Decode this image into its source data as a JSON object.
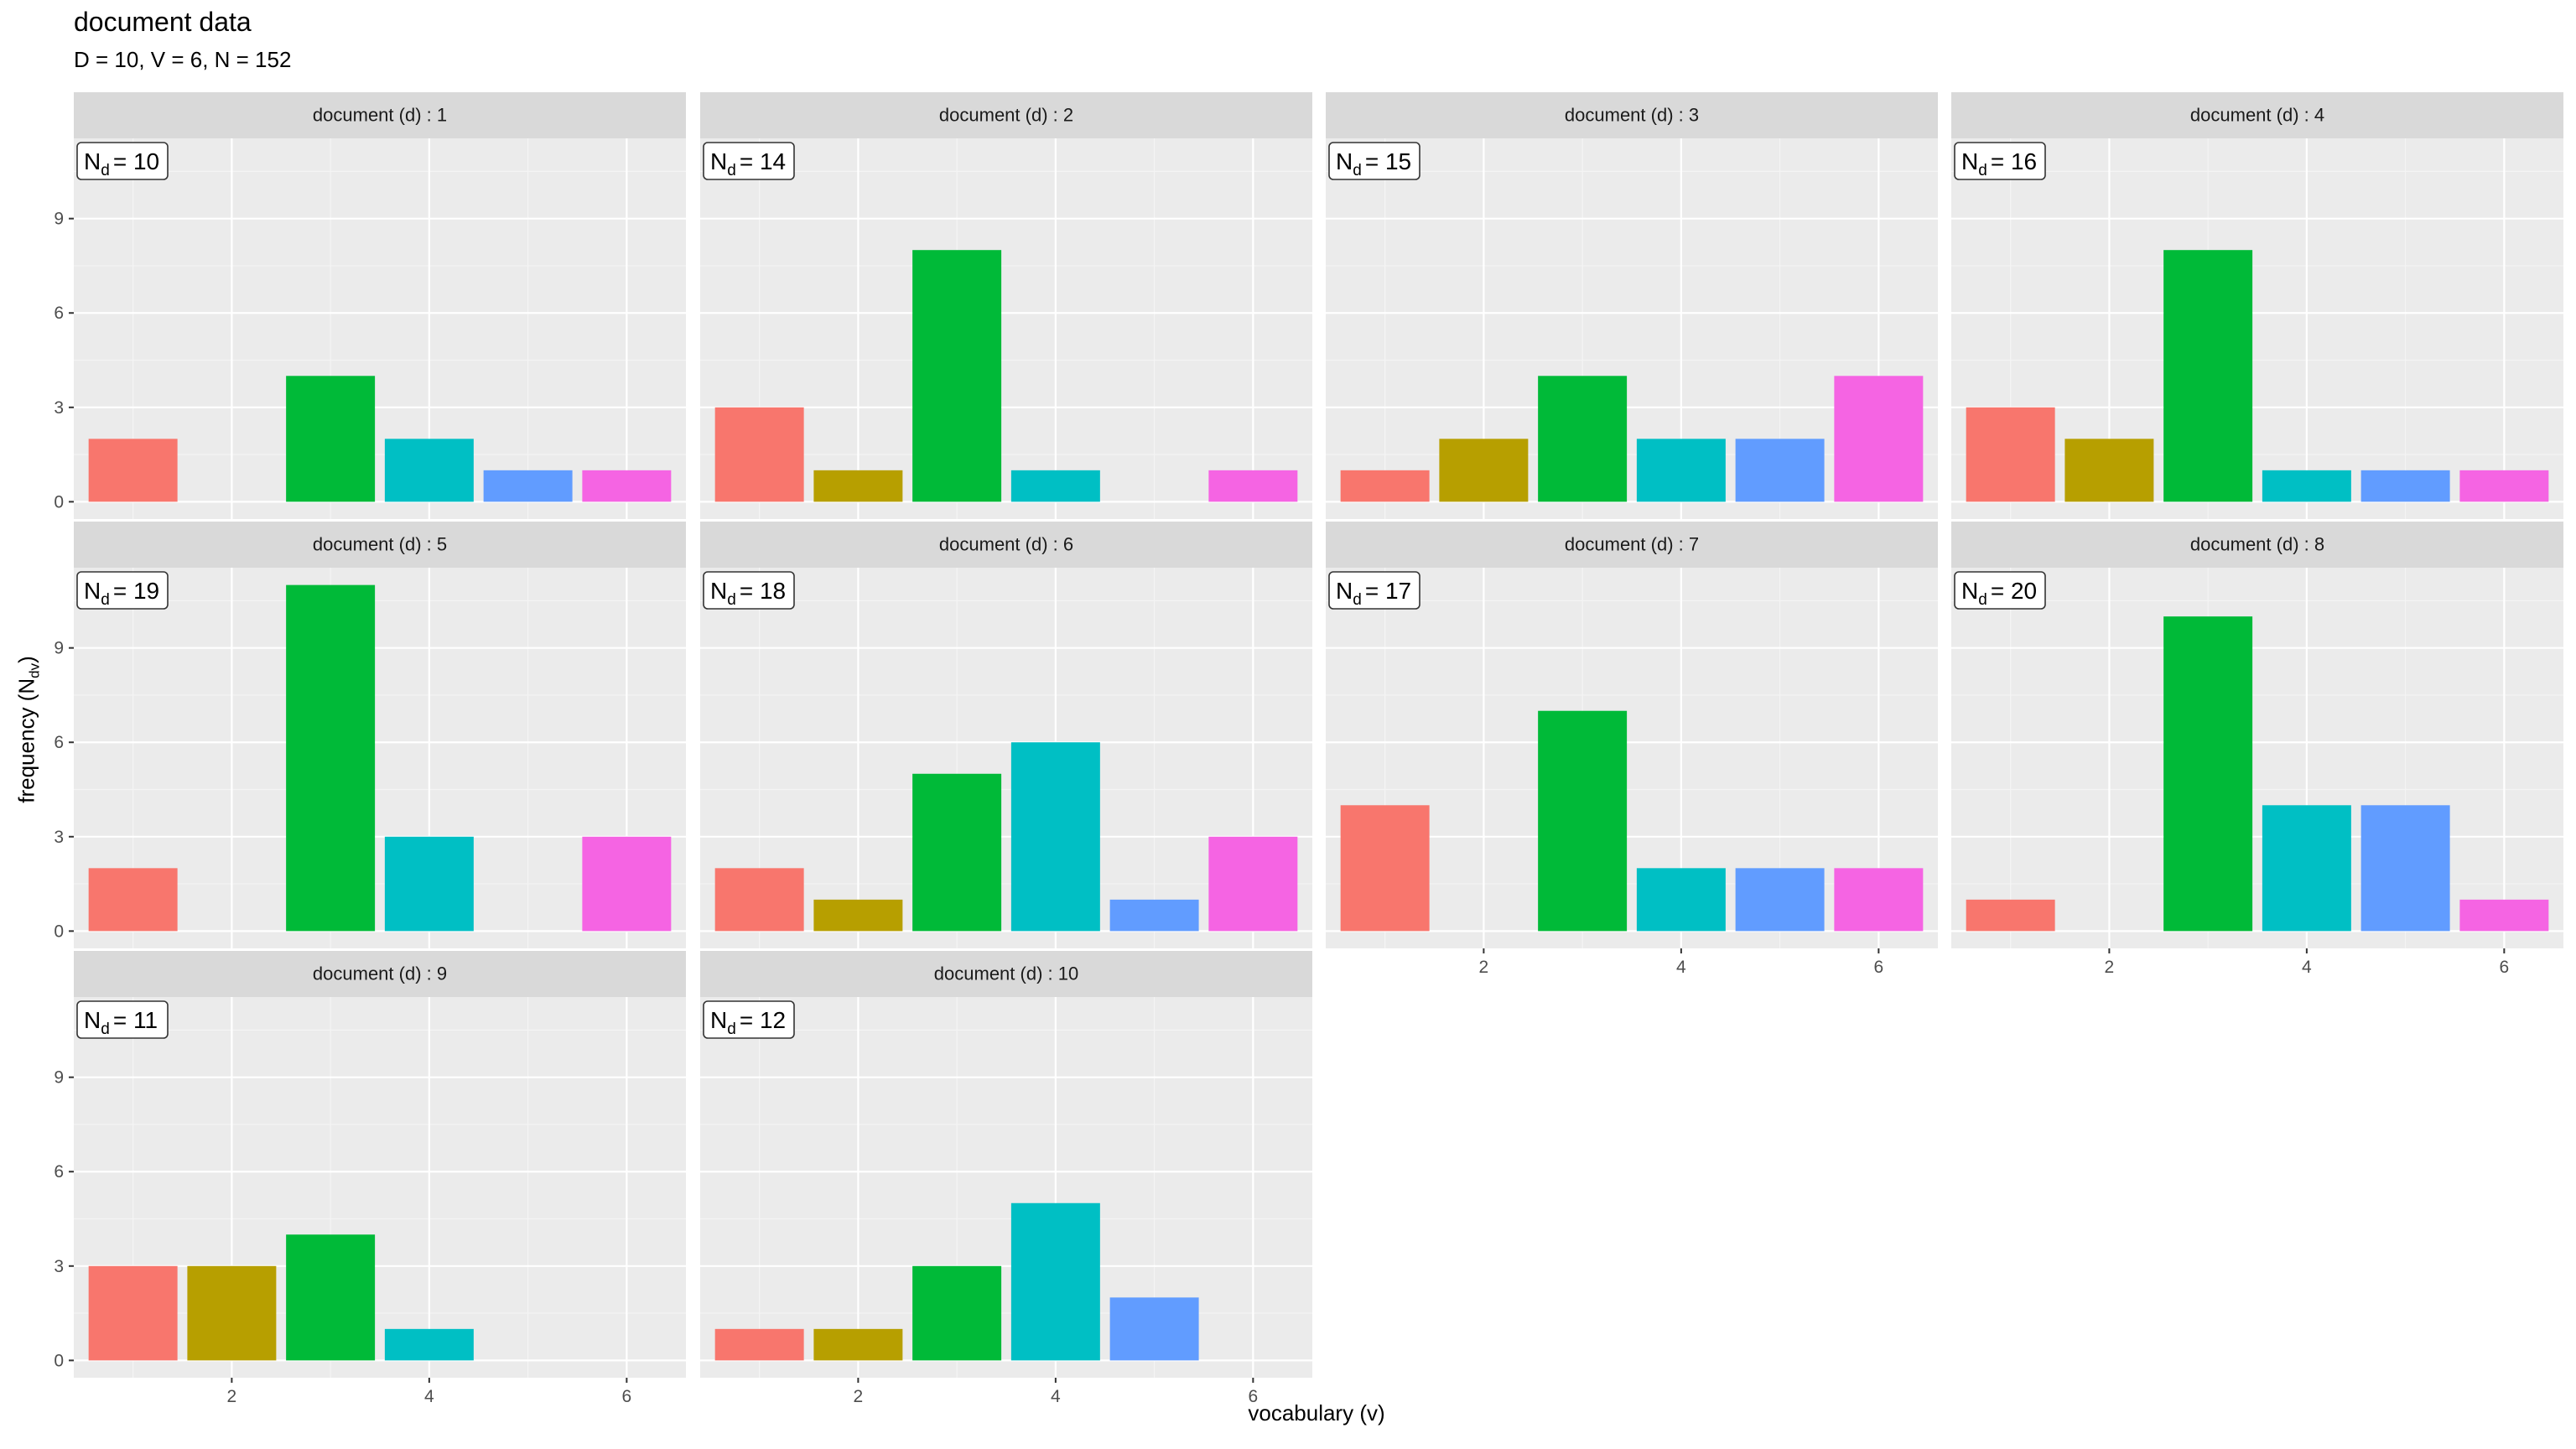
{
  "chart_data": {
    "type": "bar",
    "title": "document data",
    "subtitle": "D = 10, V = 6, N = 152",
    "xlabel": "vocabulary (v)",
    "ylabel": "frequency (N",
    "ylabel_sub": "dv",
    "ylabel_close": ")",
    "x": [
      1,
      2,
      3,
      4,
      5,
      6
    ],
    "xlim": [
      0.4,
      6.6
    ],
    "xticks": [
      2,
      4,
      6
    ],
    "ylim": [
      -0.55,
      11.55
    ],
    "yticks": [
      0,
      3,
      6,
      9
    ],
    "grid": true,
    "legend": "none",
    "bar_colors": [
      "#F8766D",
      "#B79F00",
      "#00BA38",
      "#00BFC4",
      "#619CFF",
      "#F564E3"
    ],
    "count_label_prefix": "N",
    "count_label_sub": "d",
    "panels": [
      {
        "label": "document (d) : 1",
        "count_label": "= 10",
        "values": [
          2,
          0,
          4,
          2,
          1,
          1
        ]
      },
      {
        "label": "document (d) : 2",
        "count_label": "= 14",
        "values": [
          3,
          1,
          8,
          1,
          0,
          1
        ]
      },
      {
        "label": "document (d) : 3",
        "count_label": "= 15",
        "values": [
          1,
          2,
          4,
          2,
          2,
          4
        ]
      },
      {
        "label": "document (d) : 4",
        "count_label": "= 16",
        "values": [
          3,
          2,
          8,
          1,
          1,
          1
        ]
      },
      {
        "label": "document (d) : 5",
        "count_label": "= 19",
        "values": [
          2,
          0,
          11,
          3,
          0,
          3
        ]
      },
      {
        "label": "document (d) : 6",
        "count_label": "= 18",
        "values": [
          2,
          1,
          5,
          6,
          1,
          3
        ]
      },
      {
        "label": "document (d) : 7",
        "count_label": "= 17",
        "values": [
          4,
          0,
          7,
          2,
          2,
          2
        ]
      },
      {
        "label": "document (d) : 8",
        "count_label": "= 20",
        "values": [
          1,
          0,
          10,
          4,
          4,
          1
        ]
      },
      {
        "label": "document (d) : 9",
        "count_label": "= 11",
        "values": [
          3,
          3,
          4,
          1,
          0,
          0
        ]
      },
      {
        "label": "document (d) : 10",
        "count_label": "= 12",
        "values": [
          1,
          1,
          3,
          5,
          2,
          0
        ]
      }
    ]
  }
}
